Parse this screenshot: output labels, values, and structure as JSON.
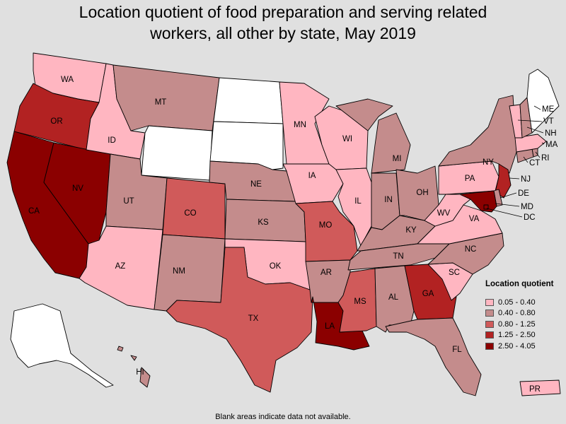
{
  "title_line1": "Location quotient of food preparation and serving related",
  "title_line2": "workers, all other by state, May 2019",
  "legend": {
    "title": "Location quotient",
    "items": [
      {
        "label": "0.05 - 0.40",
        "color": "#ffb6c1"
      },
      {
        "label": "0.40 - 0.80",
        "color": "#c48c8c"
      },
      {
        "label": "0.80 - 1.25",
        "color": "#d05a5a"
      },
      {
        "label": "1.25 - 2.50",
        "color": "#b22222"
      },
      {
        "label": "2.50 - 4.05",
        "color": "#8b0000"
      }
    ]
  },
  "footnote": "Blank areas indicate data not available.",
  "no_data_color": "#ffffff",
  "states": {
    "WA": {
      "label": "WA",
      "class": 0
    },
    "OR": {
      "label": "OR",
      "class": 3
    },
    "CA": {
      "label": "CA",
      "class": 4
    },
    "NV": {
      "label": "NV",
      "class": 4
    },
    "ID": {
      "label": "ID",
      "class": 0
    },
    "MT": {
      "label": "MT",
      "class": 1
    },
    "WY": {
      "label": "",
      "class": null
    },
    "UT": {
      "label": "UT",
      "class": 1
    },
    "AZ": {
      "label": "AZ",
      "class": 0
    },
    "CO": {
      "label": "CO",
      "class": 2
    },
    "NM": {
      "label": "NM",
      "class": 1
    },
    "ND": {
      "label": "",
      "class": null
    },
    "SD": {
      "label": "",
      "class": null
    },
    "NE": {
      "label": "NE",
      "class": 1
    },
    "KS": {
      "label": "KS",
      "class": 1
    },
    "OK": {
      "label": "OK",
      "class": 0
    },
    "TX": {
      "label": "TX",
      "class": 2
    },
    "MN": {
      "label": "MN",
      "class": 0
    },
    "IA": {
      "label": "IA",
      "class": 0
    },
    "MO": {
      "label": "MO",
      "class": 2
    },
    "AR": {
      "label": "AR",
      "class": 1
    },
    "LA": {
      "label": "LA",
      "class": 4
    },
    "WI": {
      "label": "WI",
      "class": 0
    },
    "IL": {
      "label": "IL",
      "class": 0
    },
    "MI": {
      "label": "MI",
      "class": 1
    },
    "IN": {
      "label": "IN",
      "class": 1
    },
    "OH": {
      "label": "OH",
      "class": 1
    },
    "KY": {
      "label": "KY",
      "class": 1
    },
    "TN": {
      "label": "TN",
      "class": 1
    },
    "MS": {
      "label": "MS",
      "class": 2
    },
    "AL": {
      "label": "AL",
      "class": 1
    },
    "GA": {
      "label": "GA",
      "class": 3
    },
    "FL": {
      "label": "FL",
      "class": 1
    },
    "SC": {
      "label": "SC",
      "class": 0
    },
    "NC": {
      "label": "NC",
      "class": 1
    },
    "VA": {
      "label": "VA",
      "class": 0
    },
    "WV": {
      "label": "WV",
      "class": 0
    },
    "PA": {
      "label": "PA",
      "class": 0
    },
    "NY": {
      "label": "NY",
      "class": 1
    },
    "NJ": {
      "label": "NJ",
      "class": 3
    },
    "DE": {
      "label": "DE",
      "class": 1
    },
    "MD": {
      "label": "MD",
      "class": 4
    },
    "DC": {
      "label": "DC",
      "class": 4
    },
    "CT": {
      "label": "CT",
      "class": 1
    },
    "RI": {
      "label": "RI",
      "class": 1
    },
    "MA": {
      "label": "MA",
      "class": 0
    },
    "VT": {
      "label": "VT",
      "class": 0
    },
    "NH": {
      "label": "NH",
      "class": 1
    },
    "ME": {
      "label": "ME",
      "class": null
    },
    "AK": {
      "label": "",
      "class": null
    },
    "HI": {
      "label": "HI",
      "class": 1
    },
    "PR": {
      "label": "PR",
      "class": 0
    }
  }
}
